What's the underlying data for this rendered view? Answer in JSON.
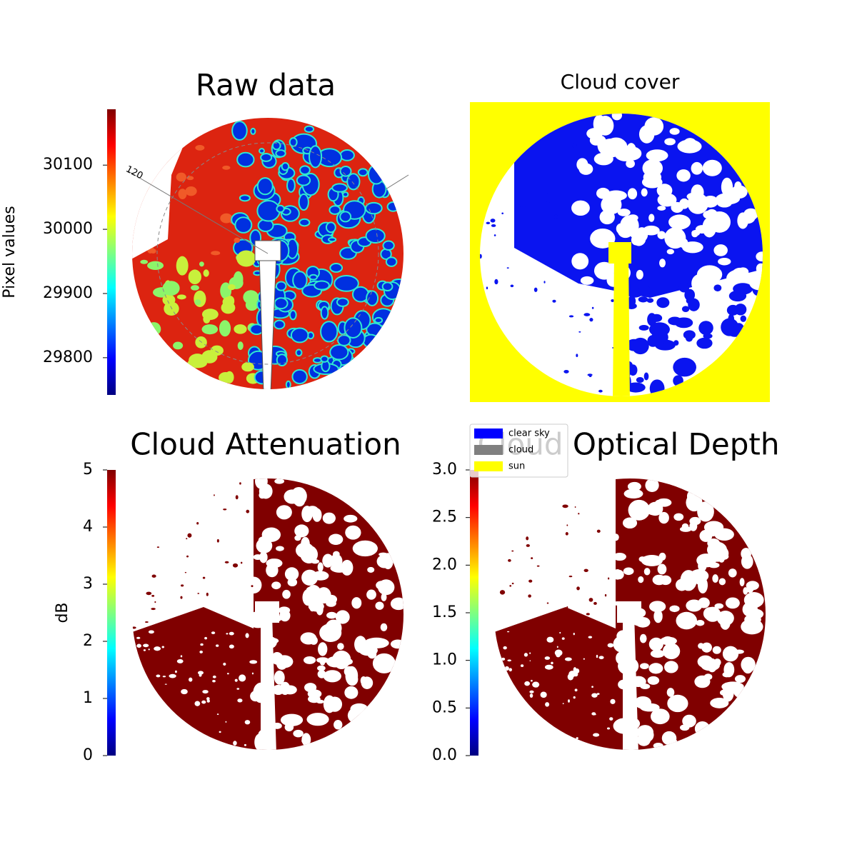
{
  "chart_data": [
    {
      "type": "image",
      "title": "Raw data",
      "annotation": "120",
      "colorbar": {
        "label": "Pixel values",
        "colormap": "jet",
        "lim": [
          29742,
          30187
        ],
        "ticks": [
          29800,
          29900,
          30000,
          30100
        ]
      }
    },
    {
      "type": "image",
      "title": "Cloud cover",
      "legend": [
        {
          "name": "clear sky",
          "color": "#0000ff"
        },
        {
          "name": "cloud",
          "color": "#808080"
        },
        {
          "name": "sun",
          "color": "#ffff00"
        }
      ]
    },
    {
      "type": "image",
      "title": "Cloud Attenuation",
      "colorbar": {
        "label": "dB",
        "colormap": "jet",
        "lim": [
          0,
          5
        ],
        "ticks": [
          0,
          1,
          2,
          3,
          4,
          5
        ]
      }
    },
    {
      "type": "image",
      "title": "Cloud Optical Depth",
      "colorbar": {
        "colormap": "jet",
        "lim": [
          0,
          3
        ],
        "ticks": [
          {
            "value": 0,
            "label": "0.0"
          },
          0.5,
          {
            "value": 1,
            "label": "1.0"
          },
          1.5,
          {
            "value": 2,
            "label": "2.0"
          },
          2.5,
          {
            "value": 3,
            "label": "3.0"
          }
        ]
      }
    }
  ]
}
